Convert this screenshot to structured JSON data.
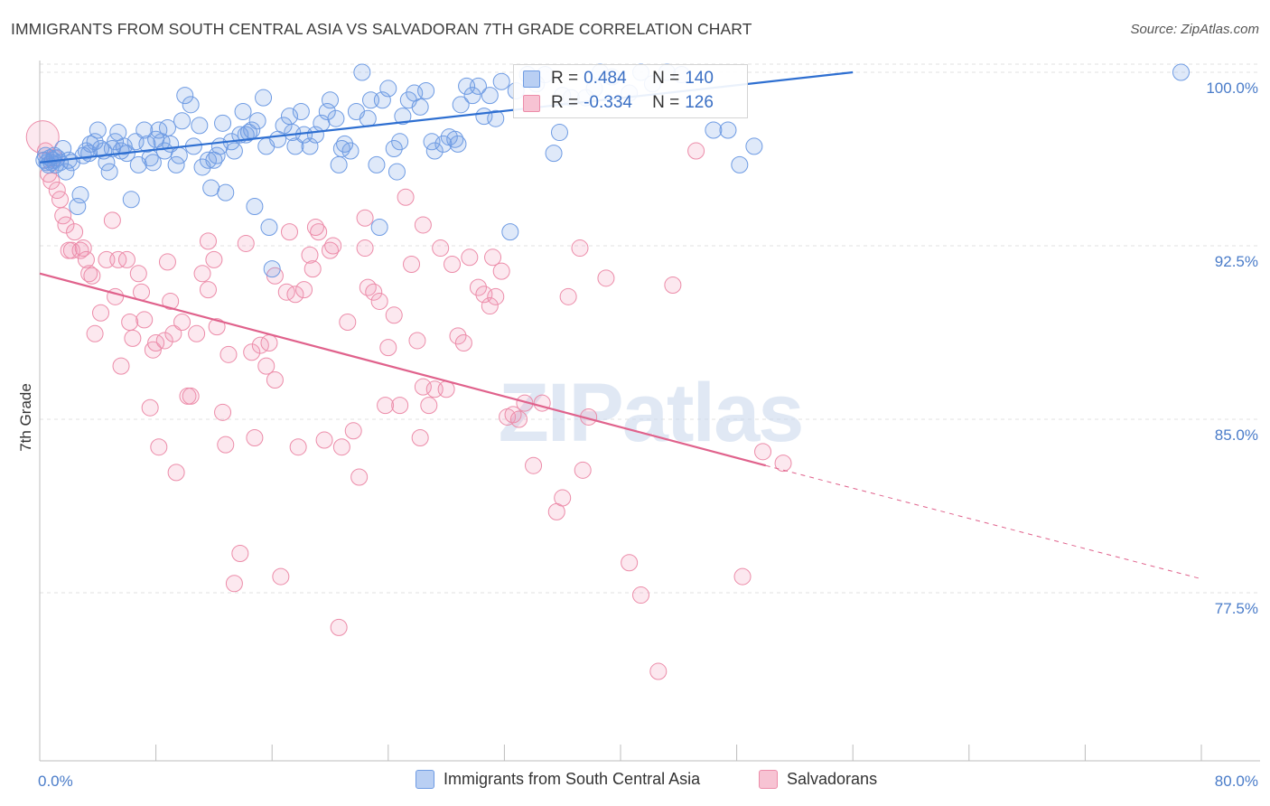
{
  "title": "IMMIGRANTS FROM SOUTH CENTRAL ASIA VS SALVADORAN 7TH GRADE CORRELATION CHART",
  "source": "Source: ZipAtlas.com",
  "watermark": "ZIPatlas",
  "legend_top": {
    "rows": [
      {
        "r_label": "R =",
        "r_value": "0.484",
        "n_label": "N =",
        "n_value": "140"
      },
      {
        "r_label": "R =",
        "r_value": "-0.334",
        "n_label": "N =",
        "n_value": "126"
      }
    ]
  },
  "legend_bottom": {
    "items": [
      "Immigrants from South Central Asia",
      "Salvadorans"
    ]
  },
  "chart_data": {
    "type": "scatter",
    "xlabel": "",
    "ylabel": "7th Grade",
    "xlim": [
      0,
      80
    ],
    "ylim": [
      71.5,
      101.5
    ],
    "x_tick_labels": [
      "0.0%",
      "80.0%"
    ],
    "y_ticks": [
      100.0,
      92.5,
      85.0,
      77.5
    ],
    "y_tick_labels": [
      "100.0%",
      "92.5%",
      "85.0%",
      "77.5%"
    ],
    "grid": true,
    "colors": {
      "blue": "#6e9be3",
      "pink": "#ec8ca9",
      "blue_line": "#2e6fd1",
      "pink_line": "#e0628c"
    },
    "series": [
      {
        "name": "Immigrants from South Central Asia",
        "r": 0.484,
        "n": 140,
        "trend": {
          "x0": 0,
          "y0": 96.1,
          "x1": 56,
          "y1": 100.0
        },
        "points": [
          [
            0.3,
            96.2
          ],
          [
            0.4,
            96.4
          ],
          [
            0.5,
            96.1
          ],
          [
            0.6,
            96.0
          ],
          [
            0.7,
            96.3
          ],
          [
            0.8,
            96.1
          ],
          [
            0.9,
            96.2
          ],
          [
            1.0,
            96.4
          ],
          [
            1.1,
            96.0
          ],
          [
            1.2,
            96.3
          ],
          [
            1.4,
            96.1
          ],
          [
            1.6,
            96.7
          ],
          [
            1.8,
            95.7
          ],
          [
            2.0,
            96.2
          ],
          [
            2.2,
            96.1
          ],
          [
            2.6,
            94.2
          ],
          [
            2.8,
            94.7
          ],
          [
            3.0,
            96.4
          ],
          [
            3.2,
            96.6
          ],
          [
            3.4,
            96.5
          ],
          [
            3.5,
            96.9
          ],
          [
            3.8,
            97.0
          ],
          [
            4.0,
            97.5
          ],
          [
            4.2,
            96.7
          ],
          [
            4.4,
            96.6
          ],
          [
            4.6,
            96.1
          ],
          [
            4.8,
            95.7
          ],
          [
            5.0,
            96.7
          ],
          [
            5.2,
            97.0
          ],
          [
            5.4,
            97.4
          ],
          [
            5.6,
            96.6
          ],
          [
            5.8,
            96.8
          ],
          [
            6.0,
            96.5
          ],
          [
            6.3,
            94.5
          ],
          [
            6.6,
            97.0
          ],
          [
            6.8,
            96.0
          ],
          [
            7.2,
            97.5
          ],
          [
            7.4,
            96.9
          ],
          [
            7.6,
            96.3
          ],
          [
            7.8,
            96.1
          ],
          [
            8.0,
            97.1
          ],
          [
            8.2,
            97.5
          ],
          [
            8.4,
            97.0
          ],
          [
            8.6,
            96.6
          ],
          [
            8.8,
            97.6
          ],
          [
            9.0,
            96.9
          ],
          [
            9.4,
            96.0
          ],
          [
            9.6,
            96.4
          ],
          [
            9.8,
            97.9
          ],
          [
            10.0,
            99.0
          ],
          [
            10.4,
            98.6
          ],
          [
            10.6,
            96.8
          ],
          [
            11.0,
            97.7
          ],
          [
            11.2,
            95.9
          ],
          [
            11.6,
            96.2
          ],
          [
            12.0,
            96.2
          ],
          [
            12.2,
            96.4
          ],
          [
            12.4,
            96.8
          ],
          [
            12.6,
            97.8
          ],
          [
            12.8,
            94.8
          ],
          [
            13.2,
            97.0
          ],
          [
            13.4,
            96.6
          ],
          [
            13.8,
            97.3
          ],
          [
            14.0,
            98.3
          ],
          [
            14.2,
            97.3
          ],
          [
            14.6,
            97.5
          ],
          [
            14.8,
            94.2
          ],
          [
            15.0,
            97.9
          ],
          [
            15.4,
            98.9
          ],
          [
            15.6,
            96.8
          ],
          [
            15.8,
            93.3
          ],
          [
            16.0,
            91.5
          ],
          [
            16.4,
            97.1
          ],
          [
            16.8,
            97.7
          ],
          [
            17.2,
            98.1
          ],
          [
            17.4,
            97.4
          ],
          [
            17.6,
            96.8
          ],
          [
            18.0,
            98.3
          ],
          [
            18.2,
            97.3
          ],
          [
            18.6,
            96.8
          ],
          [
            19.0,
            97.3
          ],
          [
            19.4,
            97.8
          ],
          [
            19.8,
            98.3
          ],
          [
            20.0,
            98.8
          ],
          [
            20.4,
            98.0
          ],
          [
            20.8,
            96.7
          ],
          [
            21.0,
            96.9
          ],
          [
            21.4,
            96.6
          ],
          [
            21.8,
            98.3
          ],
          [
            22.2,
            100.0
          ],
          [
            22.6,
            98.0
          ],
          [
            22.8,
            98.8
          ],
          [
            23.2,
            96.0
          ],
          [
            23.6,
            98.8
          ],
          [
            24.0,
            99.3
          ],
          [
            24.4,
            96.7
          ],
          [
            24.6,
            95.7
          ],
          [
            24.8,
            97.0
          ],
          [
            25.0,
            98.1
          ],
          [
            25.4,
            98.8
          ],
          [
            25.8,
            99.1
          ],
          [
            26.2,
            98.5
          ],
          [
            26.6,
            99.2
          ],
          [
            27.0,
            97.0
          ],
          [
            27.2,
            96.6
          ],
          [
            27.8,
            96.9
          ],
          [
            28.2,
            97.2
          ],
          [
            28.6,
            97.1
          ],
          [
            28.8,
            96.9
          ],
          [
            29.4,
            99.4
          ],
          [
            29.8,
            99.0
          ],
          [
            30.2,
            99.4
          ],
          [
            30.6,
            98.1
          ],
          [
            31.0,
            99.0
          ],
          [
            31.4,
            98.0
          ],
          [
            31.8,
            99.6
          ],
          [
            32.4,
            93.1
          ],
          [
            32.8,
            99.2
          ],
          [
            33.6,
            99.9
          ],
          [
            34.2,
            99.5
          ],
          [
            34.8,
            99.9
          ],
          [
            36.0,
            99.0
          ],
          [
            36.6,
            98.9
          ],
          [
            37.6,
            98.9
          ],
          [
            38.2,
            99.3
          ],
          [
            38.6,
            100.0
          ],
          [
            39.4,
            99.8
          ],
          [
            40.6,
            99.1
          ],
          [
            41.4,
            100.0
          ],
          [
            42.2,
            99.5
          ],
          [
            43.2,
            100.0
          ],
          [
            44.2,
            99.9
          ],
          [
            46.4,
            97.5
          ],
          [
            47.4,
            97.5
          ],
          [
            48.2,
            96.0
          ],
          [
            49.2,
            96.8
          ],
          [
            78.6,
            100.0
          ],
          [
            35.8,
            97.4
          ],
          [
            35.4,
            96.5
          ],
          [
            23.4,
            93.3
          ],
          [
            29.0,
            98.6
          ],
          [
            20.6,
            96.0
          ],
          [
            14.4,
            97.4
          ],
          [
            11.8,
            95.0
          ]
        ]
      },
      {
        "name": "Salvadorans",
        "r": -0.334,
        "n": 126,
        "trend": {
          "x0": 0,
          "y0": 91.3,
          "x1": 50,
          "y1": 83.0,
          "dash_x1": 80,
          "dash_y1": 78.1
        },
        "points": [
          [
            0.2,
            97.2
          ],
          [
            0.4,
            96.6
          ],
          [
            0.6,
            95.6
          ],
          [
            0.8,
            95.3
          ],
          [
            1.0,
            96.3
          ],
          [
            1.2,
            94.9
          ],
          [
            1.4,
            94.5
          ],
          [
            1.6,
            93.8
          ],
          [
            1.8,
            93.4
          ],
          [
            2.0,
            92.3
          ],
          [
            2.2,
            92.3
          ],
          [
            2.4,
            93.1
          ],
          [
            2.8,
            92.3
          ],
          [
            3.0,
            92.4
          ],
          [
            3.2,
            91.9
          ],
          [
            3.4,
            91.3
          ],
          [
            3.6,
            91.2
          ],
          [
            3.8,
            88.7
          ],
          [
            4.2,
            89.6
          ],
          [
            4.6,
            91.9
          ],
          [
            5.0,
            93.6
          ],
          [
            5.2,
            90.3
          ],
          [
            5.4,
            91.9
          ],
          [
            5.6,
            87.3
          ],
          [
            6.0,
            91.9
          ],
          [
            6.2,
            89.2
          ],
          [
            6.4,
            88.5
          ],
          [
            6.8,
            91.3
          ],
          [
            7.0,
            90.5
          ],
          [
            7.2,
            89.3
          ],
          [
            7.6,
            85.5
          ],
          [
            7.8,
            88.0
          ],
          [
            8.0,
            88.3
          ],
          [
            8.2,
            83.8
          ],
          [
            8.6,
            88.4
          ],
          [
            8.8,
            91.8
          ],
          [
            9.0,
            90.1
          ],
          [
            9.2,
            88.7
          ],
          [
            9.4,
            82.7
          ],
          [
            9.8,
            89.2
          ],
          [
            10.2,
            86.0
          ],
          [
            10.4,
            86.0
          ],
          [
            10.8,
            88.7
          ],
          [
            11.2,
            91.3
          ],
          [
            11.6,
            90.6
          ],
          [
            12.0,
            91.9
          ],
          [
            12.2,
            89.0
          ],
          [
            12.6,
            85.3
          ],
          [
            12.8,
            83.9
          ],
          [
            13.0,
            87.8
          ],
          [
            13.4,
            77.9
          ],
          [
            13.8,
            79.2
          ],
          [
            14.2,
            92.6
          ],
          [
            14.6,
            87.9
          ],
          [
            14.8,
            84.2
          ],
          [
            15.2,
            88.2
          ],
          [
            15.6,
            87.3
          ],
          [
            15.8,
            88.3
          ],
          [
            16.2,
            86.7
          ],
          [
            16.6,
            78.2
          ],
          [
            17.0,
            90.5
          ],
          [
            17.2,
            93.1
          ],
          [
            17.6,
            90.4
          ],
          [
            17.8,
            83.8
          ],
          [
            18.2,
            90.6
          ],
          [
            18.6,
            92.1
          ],
          [
            18.8,
            91.5
          ],
          [
            19.2,
            93.1
          ],
          [
            19.6,
            84.1
          ],
          [
            20.0,
            92.3
          ],
          [
            20.2,
            92.5
          ],
          [
            20.6,
            76.0
          ],
          [
            20.8,
            83.8
          ],
          [
            21.2,
            89.2
          ],
          [
            21.6,
            84.5
          ],
          [
            22.0,
            82.5
          ],
          [
            22.4,
            92.4
          ],
          [
            22.6,
            90.7
          ],
          [
            23.0,
            90.5
          ],
          [
            23.4,
            90.1
          ],
          [
            23.8,
            85.6
          ],
          [
            24.0,
            88.1
          ],
          [
            24.4,
            89.5
          ],
          [
            24.8,
            85.6
          ],
          [
            25.2,
            94.6
          ],
          [
            25.6,
            91.7
          ],
          [
            26.0,
            88.4
          ],
          [
            26.2,
            84.2
          ],
          [
            26.4,
            86.4
          ],
          [
            26.8,
            85.6
          ],
          [
            27.2,
            86.3
          ],
          [
            27.6,
            92.4
          ],
          [
            28.0,
            86.3
          ],
          [
            28.4,
            91.7
          ],
          [
            28.8,
            88.6
          ],
          [
            29.2,
            88.3
          ],
          [
            29.6,
            92.0
          ],
          [
            30.2,
            90.7
          ],
          [
            30.6,
            90.4
          ],
          [
            31.0,
            89.9
          ],
          [
            31.4,
            90.3
          ],
          [
            31.8,
            91.4
          ],
          [
            32.2,
            85.1
          ],
          [
            32.6,
            85.2
          ],
          [
            33.0,
            85.0
          ],
          [
            33.4,
            85.7
          ],
          [
            34.0,
            83.0
          ],
          [
            34.6,
            85.7
          ],
          [
            35.6,
            81.0
          ],
          [
            36.0,
            81.6
          ],
          [
            36.4,
            90.3
          ],
          [
            37.2,
            92.4
          ],
          [
            37.8,
            85.1
          ],
          [
            39.0,
            91.1
          ],
          [
            40.6,
            78.8
          ],
          [
            41.4,
            77.4
          ],
          [
            42.6,
            74.1
          ],
          [
            43.6,
            90.8
          ],
          [
            45.2,
            96.6
          ],
          [
            48.4,
            78.2
          ],
          [
            49.8,
            83.6
          ],
          [
            51.2,
            83.1
          ],
          [
            37.4,
            82.8
          ],
          [
            26.4,
            93.4
          ],
          [
            31.2,
            92.0
          ],
          [
            22.4,
            93.7
          ],
          [
            11.6,
            92.7
          ],
          [
            16.2,
            91.2
          ],
          [
            19.0,
            93.3
          ]
        ]
      }
    ]
  }
}
